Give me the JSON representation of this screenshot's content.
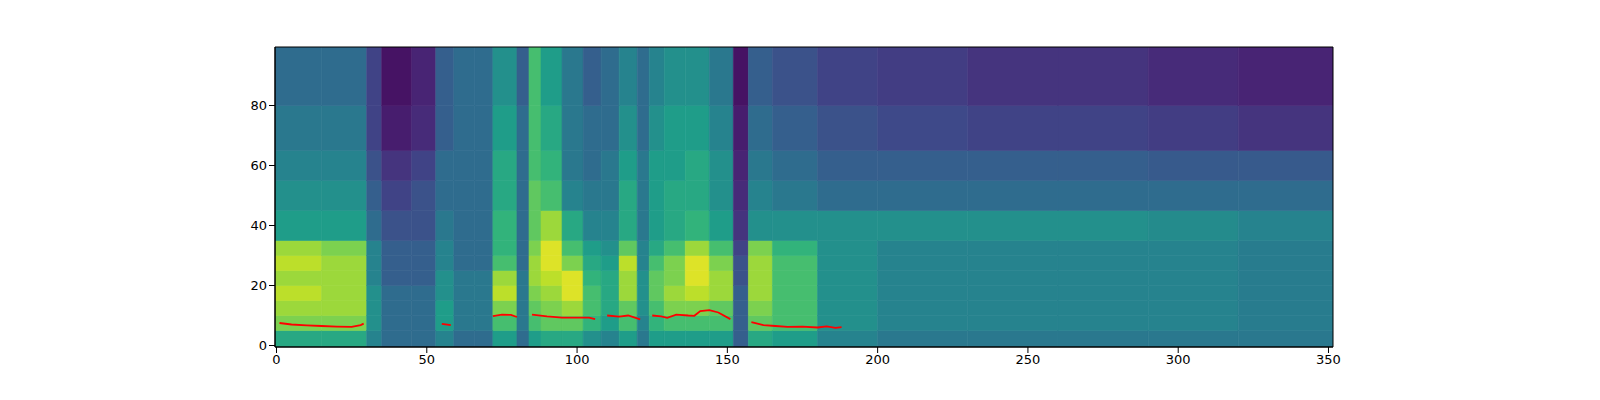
{
  "chart_data": {
    "type": "heatmap",
    "xlim": [
      -0.5,
      351.5
    ],
    "ylim": [
      -0.5,
      99.5
    ],
    "xticks": [
      0,
      50,
      100,
      150,
      200,
      250,
      300,
      350
    ],
    "yticks": [
      0,
      20,
      40,
      60,
      80
    ],
    "heatmap": {
      "color": "viridis",
      "x_edges": [
        -0.5,
        15,
        30,
        35,
        45,
        53,
        59,
        66,
        72,
        80,
        84,
        88,
        95,
        102,
        108,
        114,
        120,
        124,
        129,
        136,
        144,
        152,
        157,
        165,
        180,
        200,
        230,
        260,
        290,
        320,
        351.5
      ],
      "y_edges": [
        -0.5,
        5,
        10,
        15,
        20,
        25,
        30,
        35,
        45,
        55,
        65,
        80,
        99.5
      ],
      "values": [
        [
          0.6,
          0.8,
          0.85,
          0.9,
          0.85,
          0.9,
          0.85,
          0.55,
          0.5,
          0.45,
          0.4,
          0.35
        ],
        [
          0.6,
          0.8,
          0.85,
          0.85,
          0.85,
          0.85,
          0.8,
          0.55,
          0.5,
          0.45,
          0.4,
          0.35
        ],
        [
          0.45,
          0.5,
          0.5,
          0.5,
          0.45,
          0.45,
          0.45,
          0.35,
          0.3,
          0.25,
          0.2,
          0.2
        ],
        [
          0.35,
          0.35,
          0.35,
          0.35,
          0.3,
          0.3,
          0.3,
          0.25,
          0.2,
          0.15,
          0.08,
          0.05
        ],
        [
          0.35,
          0.35,
          0.35,
          0.35,
          0.3,
          0.3,
          0.3,
          0.25,
          0.25,
          0.2,
          0.12,
          0.1
        ],
        [
          0.45,
          0.55,
          0.55,
          0.5,
          0.5,
          0.45,
          0.45,
          0.4,
          0.35,
          0.35,
          0.3,
          0.3
        ],
        [
          0.35,
          0.4,
          0.4,
          0.4,
          0.4,
          0.35,
          0.35,
          0.35,
          0.35,
          0.35,
          0.35,
          0.35
        ],
        [
          0.35,
          0.4,
          0.4,
          0.4,
          0.4,
          0.35,
          0.35,
          0.35,
          0.35,
          0.35,
          0.35,
          0.35
        ],
        [
          0.55,
          0.7,
          0.8,
          0.9,
          0.85,
          0.7,
          0.65,
          0.65,
          0.6,
          0.6,
          0.55,
          0.5
        ],
        [
          0.35,
          0.4,
          0.4,
          0.4,
          0.4,
          0.35,
          0.35,
          0.35,
          0.35,
          0.35,
          0.35,
          0.3
        ],
        [
          0.55,
          0.7,
          0.75,
          0.8,
          0.85,
          0.85,
          0.8,
          0.75,
          0.75,
          0.7,
          0.7,
          0.7
        ],
        [
          0.6,
          0.75,
          0.8,
          0.85,
          0.9,
          0.95,
          0.95,
          0.85,
          0.7,
          0.65,
          0.6,
          0.55
        ],
        [
          0.6,
          0.75,
          0.85,
          0.95,
          0.95,
          0.8,
          0.7,
          0.6,
          0.45,
          0.4,
          0.4,
          0.4
        ],
        [
          0.5,
          0.65,
          0.7,
          0.7,
          0.65,
          0.6,
          0.55,
          0.45,
          0.4,
          0.35,
          0.35,
          0.3
        ],
        [
          0.45,
          0.55,
          0.6,
          0.6,
          0.6,
          0.55,
          0.5,
          0.45,
          0.4,
          0.4,
          0.35,
          0.35
        ],
        [
          0.55,
          0.7,
          0.75,
          0.85,
          0.85,
          0.9,
          0.75,
          0.6,
          0.6,
          0.55,
          0.5,
          0.45
        ],
        [
          0.4,
          0.45,
          0.5,
          0.5,
          0.5,
          0.45,
          0.45,
          0.4,
          0.4,
          0.4,
          0.35,
          0.35
        ],
        [
          0.55,
          0.65,
          0.7,
          0.75,
          0.75,
          0.7,
          0.6,
          0.55,
          0.55,
          0.55,
          0.5,
          0.45
        ],
        [
          0.55,
          0.7,
          0.8,
          0.85,
          0.8,
          0.8,
          0.7,
          0.6,
          0.6,
          0.55,
          0.55,
          0.5
        ],
        [
          0.55,
          0.7,
          0.8,
          0.9,
          0.95,
          0.95,
          0.85,
          0.65,
          0.6,
          0.6,
          0.55,
          0.5
        ],
        [
          0.55,
          0.7,
          0.75,
          0.85,
          0.85,
          0.8,
          0.7,
          0.55,
          0.5,
          0.5,
          0.45,
          0.4
        ],
        [
          0.3,
          0.3,
          0.3,
          0.3,
          0.25,
          0.25,
          0.2,
          0.15,
          0.12,
          0.1,
          0.08,
          0.05
        ],
        [
          0.6,
          0.75,
          0.8,
          0.85,
          0.85,
          0.85,
          0.8,
          0.5,
          0.45,
          0.4,
          0.35,
          0.3
        ],
        [
          0.55,
          0.7,
          0.7,
          0.7,
          0.7,
          0.7,
          0.65,
          0.5,
          0.4,
          0.35,
          0.3,
          0.25
        ],
        [
          0.45,
          0.5,
          0.5,
          0.5,
          0.5,
          0.5,
          0.5,
          0.5,
          0.35,
          0.3,
          0.25,
          0.2
        ],
        [
          0.4,
          0.45,
          0.45,
          0.45,
          0.45,
          0.45,
          0.45,
          0.5,
          0.35,
          0.3,
          0.22,
          0.18
        ],
        [
          0.4,
          0.45,
          0.45,
          0.45,
          0.45,
          0.45,
          0.45,
          0.5,
          0.35,
          0.3,
          0.2,
          0.15
        ],
        [
          0.4,
          0.45,
          0.45,
          0.45,
          0.45,
          0.45,
          0.45,
          0.5,
          0.35,
          0.3,
          0.2,
          0.15
        ],
        [
          0.4,
          0.45,
          0.45,
          0.45,
          0.45,
          0.45,
          0.45,
          0.48,
          0.35,
          0.28,
          0.18,
          0.12
        ],
        [
          0.4,
          0.42,
          0.42,
          0.42,
          0.42,
          0.42,
          0.42,
          0.45,
          0.35,
          0.28,
          0.15,
          0.1
        ]
      ]
    },
    "x": [
      1,
      5,
      10,
      15,
      20,
      25,
      28,
      29,
      42,
      55,
      58,
      65,
      72,
      75,
      78,
      80,
      82,
      85,
      90,
      95,
      100,
      104,
      106,
      108,
      110,
      114,
      117,
      121,
      123,
      125,
      128,
      130,
      133,
      137,
      139,
      141,
      144,
      147,
      151,
      155,
      158,
      162,
      166,
      170,
      175,
      180,
      183,
      186,
      188
    ],
    "series": [
      {
        "type": "line",
        "color": "#ff0000",
        "values": [
          7.5,
          7.0,
          6.7,
          6.5,
          6.3,
          6.2,
          6.8,
          7.3,
          null,
          7.2,
          6.8,
          null,
          9.8,
          10.3,
          10.2,
          9.5,
          null,
          10.3,
          9.7,
          9.3,
          9.3,
          9.3,
          8.8,
          null,
          10.0,
          9.6,
          10.0,
          8.7,
          null,
          10.0,
          9.7,
          9.2,
          10.3,
          10.0,
          9.9,
          11.5,
          11.8,
          11.0,
          8.8,
          null,
          7.8,
          6.8,
          6.5,
          6.2,
          6.3,
          6.0,
          6.4,
          5.9,
          6.1
        ]
      }
    ]
  }
}
